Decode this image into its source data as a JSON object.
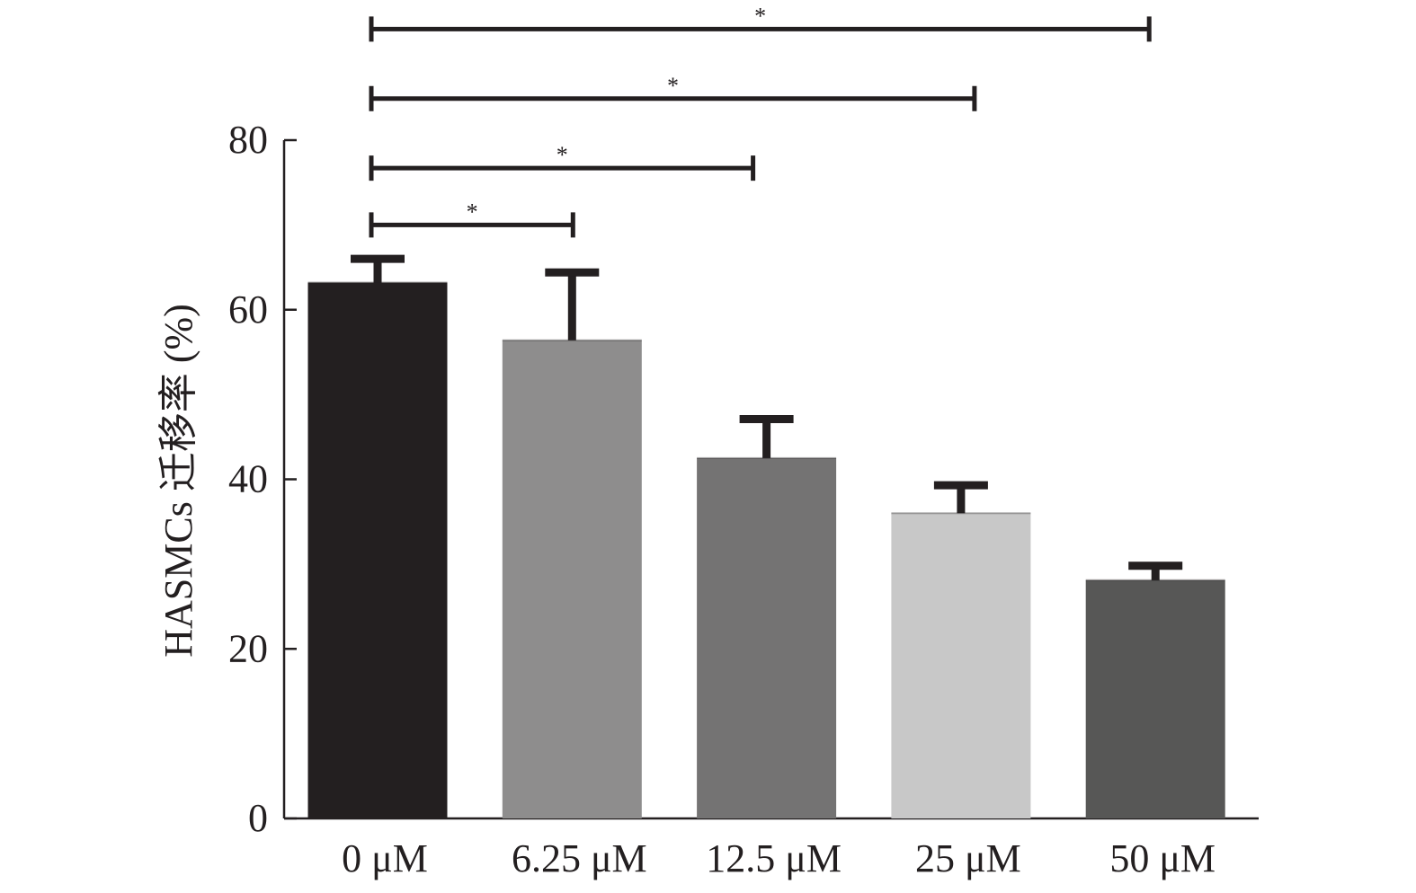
{
  "chart_data": {
    "type": "bar",
    "title": "",
    "xlabel": "",
    "ylabel": "HASMCs 迁移率 (%)",
    "ylim": [
      0,
      80
    ],
    "yticks": [
      0,
      20,
      40,
      60,
      80
    ],
    "ytick_labels": [
      "0",
      "20",
      "40",
      "60",
      "80"
    ],
    "grid": false,
    "categories": [
      "0 μM",
      "6.25 μM",
      "12.5 μM",
      "25 μM",
      "50 μM"
    ],
    "values": [
      63.2,
      56.4,
      42.5,
      36.0,
      28.1
    ],
    "error_upper": [
      66.0,
      64.4,
      47.1,
      39.3,
      29.8
    ],
    "bar_colors": [
      "#231f20",
      "#8e8d8d",
      "#747373",
      "#c8c8c8",
      "#575756"
    ],
    "significance": [
      {
        "from": 0,
        "to": 1,
        "label": "*",
        "level": 70.0
      },
      {
        "from": 0,
        "to": 2,
        "label": "*",
        "level": 76.7
      },
      {
        "from": 0,
        "to": 3,
        "label": "*",
        "level": 84.9
      },
      {
        "from": 0,
        "to": 4,
        "label": "*",
        "level": 93.1
      }
    ]
  }
}
